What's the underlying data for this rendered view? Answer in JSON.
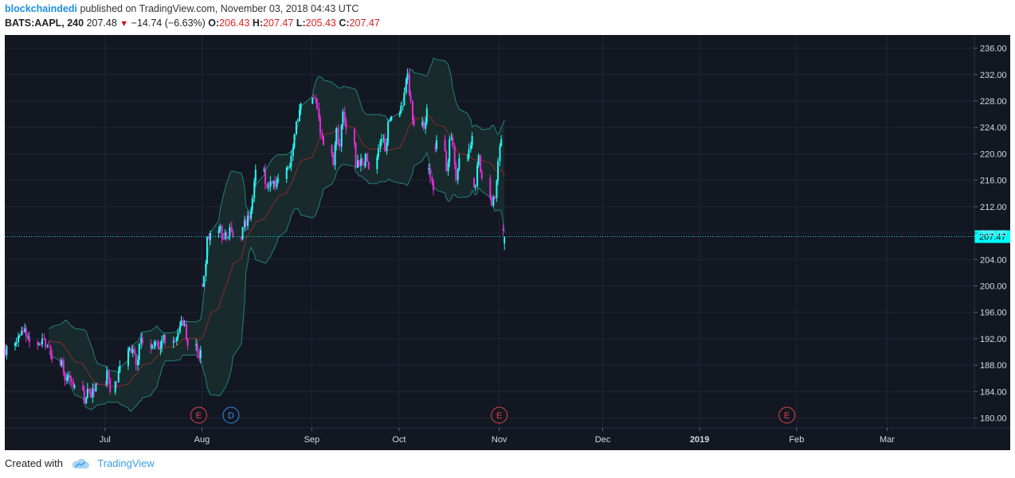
{
  "header": {
    "author": "blockchaindedi",
    "published_text": "published on TradingView.com, November 03, 2018 04:43 UTC"
  },
  "symbol_line": {
    "symbol": "BATS:AAPL, 240",
    "last": "207.48",
    "change": "−14.74 (−6.63%)",
    "o_label": "O:",
    "o_value": "206.43",
    "h_label": "H:",
    "h_value": "207.47",
    "l_label": "L:",
    "l_value": "205.43",
    "c_label": "C:",
    "c_value": "207.47"
  },
  "footer": {
    "created_with": "Created with",
    "brand": "TradingView"
  },
  "colors": {
    "background": "#131722",
    "up": "#2af6f2",
    "down": "#e62bd8",
    "band_line": "#21807c",
    "band_fill": "#192a2c",
    "basis": "#8a2b2b",
    "grid": "#1f2633",
    "price_line": "#00d5e0",
    "price_label_bg": "#00ffff",
    "event_e": "#e0434a",
    "event_d": "#2d8be8"
  },
  "chart_data": {
    "type": "candlestick",
    "instrument": "BATS:AAPL",
    "timeframe": "240",
    "y_ticks": [
      236.0,
      232.0,
      228.0,
      224.0,
      220.0,
      216.0,
      212.0,
      208.0,
      204.0,
      200.0,
      196.0,
      192.0,
      188.0,
      184.0,
      180.0
    ],
    "y_tick_labels": [
      "236.00",
      "232.00",
      "228.00",
      "224.00",
      "220.00",
      "216.00",
      "212.00",
      "208.00",
      "204.00",
      "200.00",
      "196.00",
      "192.00",
      "188.00",
      "184.00",
      "180.00"
    ],
    "ylim": [
      178.5,
      238.0
    ],
    "x_ticks": [
      {
        "label": "Jul",
        "date": "2018-07-02",
        "bold": false
      },
      {
        "label": "Aug",
        "date": "2018-08-01",
        "bold": false
      },
      {
        "label": "Sep",
        "date": "2018-09-04",
        "bold": false
      },
      {
        "label": "Oct",
        "date": "2018-10-01",
        "bold": false
      },
      {
        "label": "Nov",
        "date": "2018-11-01",
        "bold": false
      },
      {
        "label": "Dec",
        "date": "2018-12-03",
        "bold": false
      },
      {
        "label": "2019",
        "date": "2019-01-02",
        "bold": true
      },
      {
        "label": "Feb",
        "date": "2019-02-01",
        "bold": false
      },
      {
        "label": "Mar",
        "date": "2019-03-01",
        "bold": false
      }
    ],
    "xlim": [
      "2018-06-01",
      "2019-03-28"
    ],
    "current_price": {
      "value": 207.47,
      "label": "207.47"
    },
    "events": [
      {
        "label": "E",
        "date": "2018-07-31",
        "kind": "earnings"
      },
      {
        "label": "D",
        "date": "2018-08-10",
        "kind": "dividend"
      },
      {
        "label": "E",
        "date": "2018-11-01",
        "kind": "earnings"
      },
      {
        "label": "E",
        "date": "2019-01-29",
        "kind": "earnings"
      }
    ],
    "daily_close": [
      [
        "2018-06-01",
        190.9
      ],
      [
        "2018-06-04",
        191.5
      ],
      [
        "2018-06-05",
        192.5
      ],
      [
        "2018-06-06",
        193.0
      ],
      [
        "2018-06-07",
        192.3
      ],
      [
        "2018-06-08",
        191.5
      ],
      [
        "2018-06-11",
        191.2
      ],
      [
        "2018-06-12",
        192.0
      ],
      [
        "2018-06-13",
        190.8
      ],
      [
        "2018-06-14",
        190.8
      ],
      [
        "2018-06-15",
        188.8
      ],
      [
        "2018-06-18",
        188.7
      ],
      [
        "2018-06-19",
        185.7
      ],
      [
        "2018-06-20",
        186.5
      ],
      [
        "2018-06-21",
        185.5
      ],
      [
        "2018-06-22",
        184.9
      ],
      [
        "2018-06-25",
        182.2
      ],
      [
        "2018-06-26",
        184.4
      ],
      [
        "2018-06-27",
        183.1
      ],
      [
        "2018-06-28",
        184.0
      ],
      [
        "2018-06-29",
        185.1
      ],
      [
        "2018-07-02",
        187.2
      ],
      [
        "2018-07-03",
        183.9
      ],
      [
        "2018-07-05",
        185.4
      ],
      [
        "2018-07-06",
        187.9
      ],
      [
        "2018-07-09",
        190.6
      ],
      [
        "2018-07-10",
        190.4
      ],
      [
        "2018-07-11",
        188.0
      ],
      [
        "2018-07-12",
        191.3
      ],
      [
        "2018-07-13",
        191.3
      ],
      [
        "2018-07-16",
        190.9
      ],
      [
        "2018-07-17",
        191.5
      ],
      [
        "2018-07-18",
        190.4
      ],
      [
        "2018-07-19",
        191.9
      ],
      [
        "2018-07-20",
        191.4
      ],
      [
        "2018-07-23",
        191.6
      ],
      [
        "2018-07-24",
        193.0
      ],
      [
        "2018-07-25",
        194.8
      ],
      [
        "2018-07-26",
        194.2
      ],
      [
        "2018-07-27",
        190.98
      ],
      [
        "2018-07-30",
        189.9
      ],
      [
        "2018-07-31",
        190.3
      ],
      [
        "2018-08-01",
        201.5
      ],
      [
        "2018-08-02",
        207.4
      ],
      [
        "2018-08-03",
        207.99
      ],
      [
        "2018-08-06",
        209.1
      ],
      [
        "2018-08-07",
        207.1
      ],
      [
        "2018-08-08",
        207.3
      ],
      [
        "2018-08-09",
        208.9
      ],
      [
        "2018-08-10",
        207.5
      ],
      [
        "2018-08-13",
        208.9
      ],
      [
        "2018-08-14",
        209.1
      ],
      [
        "2018-08-15",
        210.2
      ],
      [
        "2018-08-16",
        213.3
      ],
      [
        "2018-08-17",
        217.6
      ],
      [
        "2018-08-20",
        215.5
      ],
      [
        "2018-08-21",
        215.0
      ],
      [
        "2018-08-22",
        215.5
      ],
      [
        "2018-08-23",
        215.0
      ],
      [
        "2018-08-24",
        216.2
      ],
      [
        "2018-08-27",
        217.9
      ],
      [
        "2018-08-28",
        219.7
      ],
      [
        "2018-08-29",
        222.98
      ],
      [
        "2018-08-30",
        225.0
      ],
      [
        "2018-08-31",
        227.6
      ],
      [
        "2018-09-04",
        228.4
      ],
      [
        "2018-09-05",
        226.9
      ],
      [
        "2018-09-06",
        223.1
      ],
      [
        "2018-09-07",
        221.3
      ],
      [
        "2018-09-10",
        218.3
      ],
      [
        "2018-09-11",
        223.9
      ],
      [
        "2018-09-12",
        221.1
      ],
      [
        "2018-09-13",
        226.4
      ],
      [
        "2018-09-14",
        223.8
      ],
      [
        "2018-09-17",
        217.9
      ],
      [
        "2018-09-18",
        218.2
      ],
      [
        "2018-09-19",
        218.4
      ],
      [
        "2018-09-20",
        220.0
      ],
      [
        "2018-09-21",
        217.7
      ],
      [
        "2018-09-24",
        220.8
      ],
      [
        "2018-09-25",
        222.2
      ],
      [
        "2018-09-26",
        220.4
      ],
      [
        "2018-09-27",
        224.9
      ],
      [
        "2018-09-28",
        225.7
      ],
      [
        "2018-10-01",
        227.3
      ],
      [
        "2018-10-02",
        229.3
      ],
      [
        "2018-10-03",
        232.1
      ],
      [
        "2018-10-04",
        227.99
      ],
      [
        "2018-10-05",
        224.3
      ],
      [
        "2018-10-08",
        223.8
      ],
      [
        "2018-10-09",
        226.9
      ],
      [
        "2018-10-10",
        216.4
      ],
      [
        "2018-10-11",
        214.5
      ],
      [
        "2018-10-12",
        222.1
      ],
      [
        "2018-10-15",
        217.4
      ],
      [
        "2018-10-16",
        222.2
      ],
      [
        "2018-10-17",
        221.2
      ],
      [
        "2018-10-18",
        216.0
      ],
      [
        "2018-10-19",
        219.3
      ],
      [
        "2018-10-22",
        220.7
      ],
      [
        "2018-10-23",
        222.7
      ],
      [
        "2018-10-24",
        215.1
      ],
      [
        "2018-10-25",
        219.8
      ],
      [
        "2018-10-26",
        216.3
      ],
      [
        "2018-10-29",
        212.2
      ],
      [
        "2018-10-30",
        213.3
      ],
      [
        "2018-10-31",
        218.9
      ],
      [
        "2018-11-01",
        222.2
      ],
      [
        "2018-11-02",
        207.48
      ]
    ],
    "series": [
      {
        "name": "Bollinger Bands (basis)",
        "kind": "line"
      },
      {
        "name": "Bollinger Bands (upper)",
        "kind": "line"
      },
      {
        "name": "Bollinger Bands (lower)",
        "kind": "line"
      }
    ]
  }
}
